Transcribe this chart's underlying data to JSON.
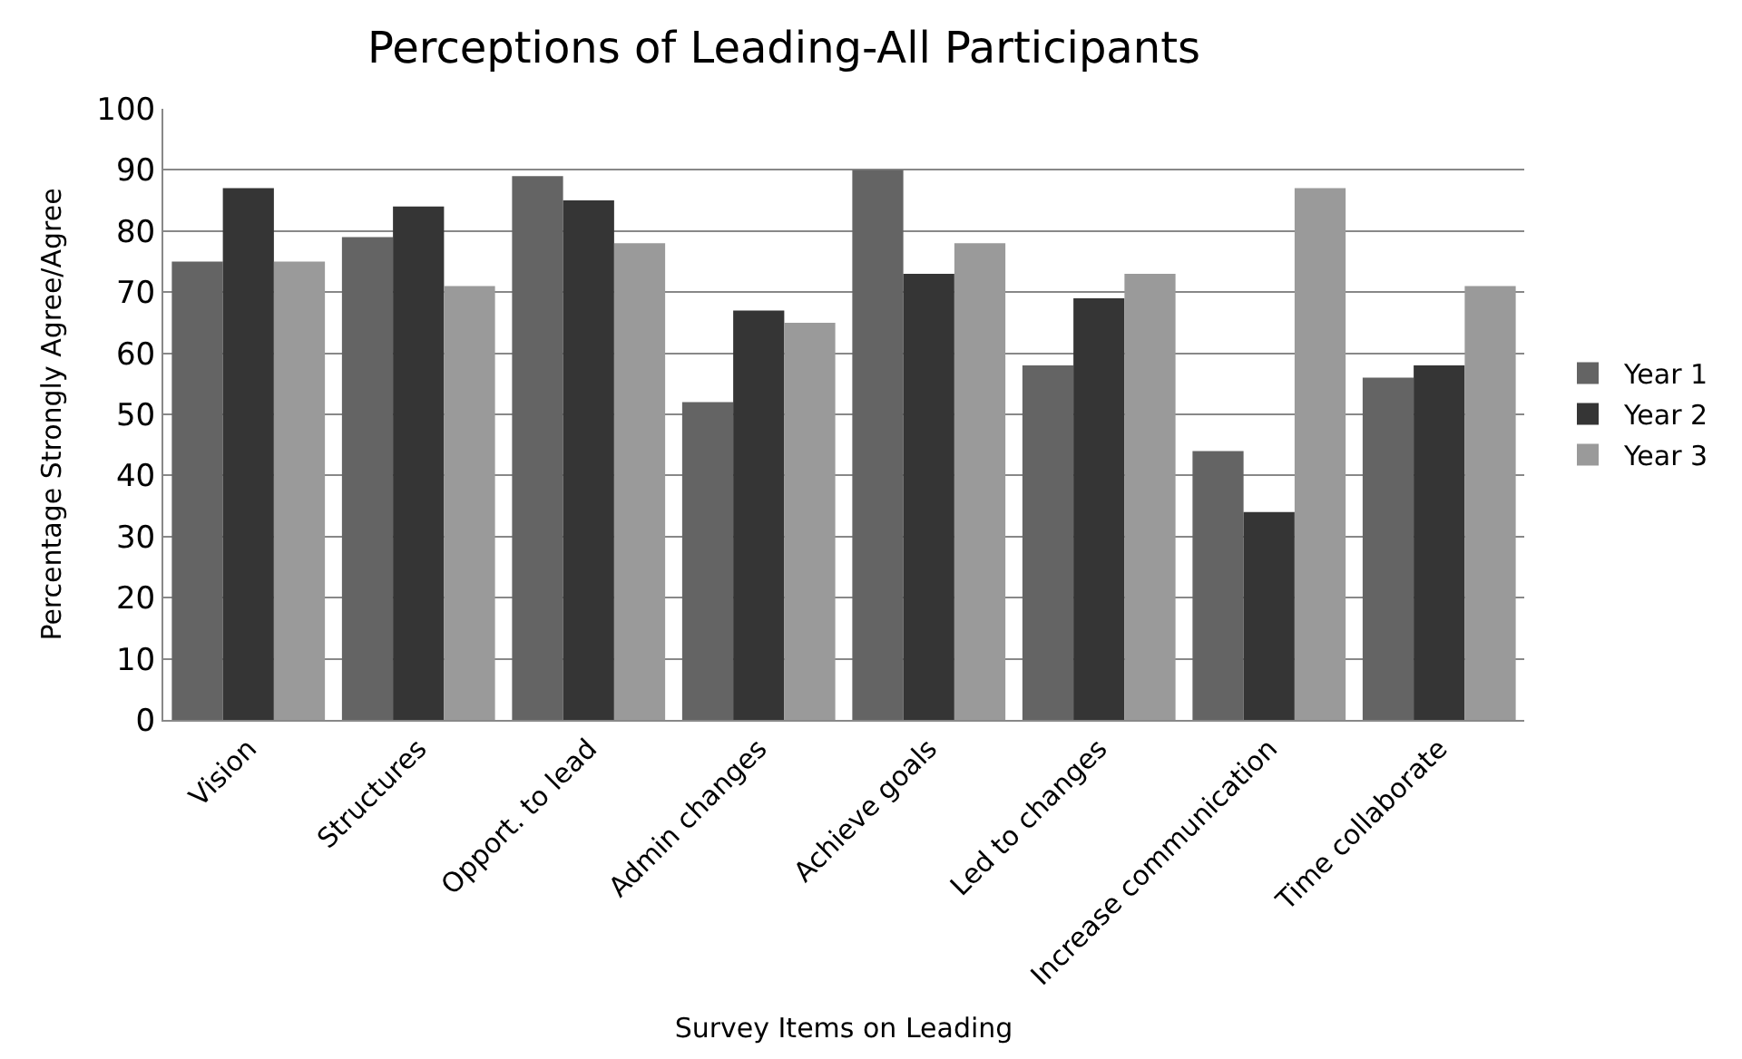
{
  "chart_data": {
    "type": "bar",
    "title": "Perceptions of Leading-All Participants",
    "xlabel": "Survey Items on Leading",
    "ylabel": "Percentage Strongly Agree/Agree",
    "categories": [
      "Vision",
      "Structures",
      "Opport. to lead",
      "Admin changes",
      "Achieve goals",
      "Led to changes",
      "Increase communication",
      "Time collaborate"
    ],
    "series": [
      {
        "name": "Year 1",
        "color": "#646464",
        "values": [
          75,
          79,
          89,
          52,
          90,
          58,
          44,
          56
        ]
      },
      {
        "name": "Year 2",
        "color": "#353535",
        "values": [
          87,
          84,
          85,
          67,
          73,
          69,
          34,
          58
        ]
      },
      {
        "name": "Year 3",
        "color": "#9a9a9a",
        "values": [
          75,
          71,
          78,
          65,
          78,
          73,
          87,
          71
        ]
      }
    ],
    "ylim": [
      0,
      100
    ],
    "yticks": [
      0,
      10,
      20,
      30,
      40,
      50,
      60,
      70,
      80,
      90,
      100
    ],
    "grid": "y",
    "legend": "right"
  }
}
